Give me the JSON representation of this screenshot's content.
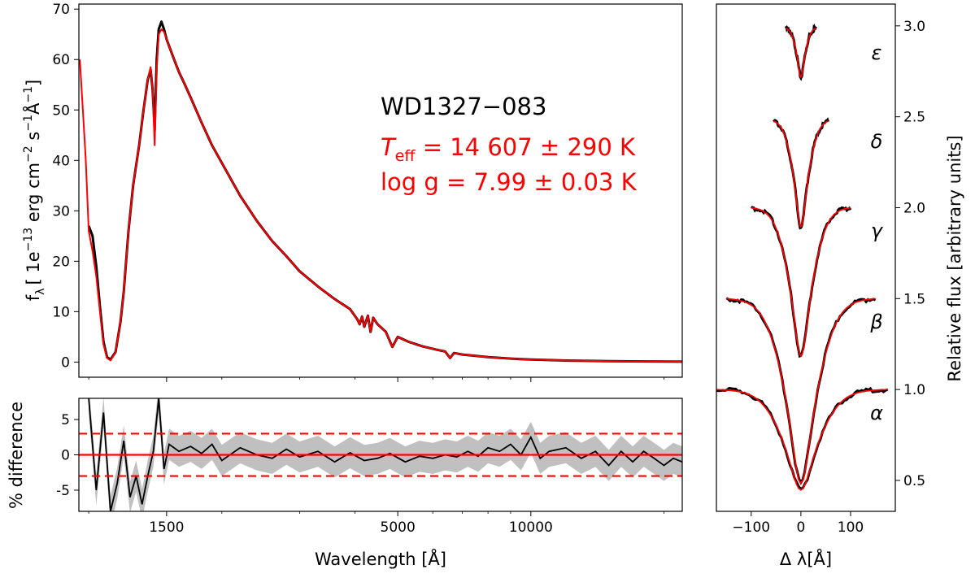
{
  "chart_data": [
    {
      "type": "line",
      "panel": "main-sed",
      "xlabel": "",
      "ylabel": "f_λ [ 1e−13 erg cm−2 s−1Å−1]",
      "ylabel_parts": {
        "f": "f",
        "lambda_sub": "λ",
        "bracket_open": "[ 1e",
        "exp1": "−13",
        "mid1": " erg cm",
        "exp2": "−2",
        "mid2": " s",
        "exp3": "−1",
        "mid3": "Å",
        "exp4": "−1",
        "bracket_close": "]"
      },
      "x_scale": "log",
      "x_range": [
        950,
        22000
      ],
      "x_ticks": [
        1500,
        5000,
        10000
      ],
      "ylim": [
        -3,
        71
      ],
      "y_ticks": [
        0,
        10,
        20,
        30,
        40,
        50,
        60,
        70
      ],
      "annotation": {
        "star": "WD1327−083",
        "teff": {
          "sym": "T",
          "sub": "eff",
          "text": " = 14 607 ± 290 K"
        },
        "logg": {
          "text": "log g = 7.99 ± 0.03 K"
        }
      },
      "series": [
        {
          "color": "#000000",
          "x": [
            1000,
            1020,
            1040,
            1060,
            1080,
            1100,
            1120,
            1150,
            1180,
            1200,
            1215,
            1230,
            1260,
            1300,
            1330,
            1360,
            1380,
            1395,
            1410,
            1425,
            1440,
            1460,
            1480,
            1500,
            1530,
            1560,
            1600,
            1650,
            1700,
            1800,
            1900,
            2000,
            2200,
            2400,
            2600,
            2800,
            3000,
            3300,
            3600,
            3900,
            4050,
            4100,
            4150,
            4200,
            4280,
            4340,
            4400,
            4500,
            4700,
            4861,
            5000,
            5300,
            5700,
            6100,
            6400,
            6563,
            6700,
            7000,
            8000,
            9000,
            10000,
            12000,
            15000,
            18000,
            22000
          ],
          "y": [
            27,
            25,
            19,
            11,
            4,
            1.0,
            0.5,
            2,
            8,
            14,
            20,
            26,
            35,
            43,
            50,
            56,
            58,
            54,
            46,
            60,
            66,
            67.5,
            66,
            64,
            62,
            60,
            57.5,
            55,
            52.5,
            47.5,
            43,
            39.5,
            33,
            28,
            24,
            21,
            18,
            15,
            12.5,
            10.5,
            8.5,
            7.5,
            9,
            7.0,
            9.2,
            6.0,
            8.8,
            7.5,
            6.0,
            3.0,
            5.0,
            4.0,
            3.1,
            2.5,
            2.1,
            0.8,
            1.8,
            1.5,
            1.0,
            0.7,
            0.5,
            0.3,
            0.2,
            0.12,
            0.08
          ]
        },
        {
          "color": "#ff0000",
          "x": [
            955,
            970,
            985,
            1000,
            1020,
            1040,
            1060,
            1080,
            1100,
            1120,
            1150,
            1180,
            1200,
            1215,
            1230,
            1260,
            1300,
            1330,
            1360,
            1380,
            1395,
            1410,
            1425,
            1440,
            1460,
            1480,
            1500,
            1530,
            1560,
            1600,
            1650,
            1700,
            1800,
            1900,
            2000,
            2200,
            2400,
            2600,
            2800,
            3000,
            3300,
            3600,
            3900,
            4050,
            4100,
            4150,
            4200,
            4280,
            4340,
            4400,
            4500,
            4700,
            4861,
            5000,
            5300,
            5700,
            6100,
            6400,
            6563,
            6700,
            7000,
            8000,
            9000,
            10000,
            12000,
            15000,
            18000,
            22000
          ],
          "y": [
            60,
            50,
            40,
            26,
            22,
            17,
            10,
            3.5,
            0.8,
            0.3,
            2,
            8,
            14,
            20,
            26,
            35,
            43,
            50,
            56,
            58.5,
            54,
            43,
            58,
            65,
            66,
            65.5,
            64,
            62,
            60,
            57.5,
            55,
            52.5,
            47.5,
            43,
            39.5,
            33,
            28,
            24,
            21,
            18,
            15,
            12.5,
            10.5,
            8.5,
            7.5,
            9,
            7.0,
            9.2,
            6.0,
            8.8,
            7.5,
            6.0,
            3.0,
            5.0,
            4.0,
            3.1,
            2.5,
            2.1,
            0.8,
            1.8,
            1.5,
            1.0,
            0.7,
            0.5,
            0.3,
            0.2,
            0.12,
            0.08
          ]
        }
      ]
    },
    {
      "type": "line",
      "panel": "residuals",
      "xlabel": "Wavelength [Å]",
      "ylabel": "% difference",
      "x_scale": "log",
      "x_range": [
        950,
        22000
      ],
      "x_ticks": [
        1500,
        5000,
        10000
      ],
      "ylim": [
        -8,
        8
      ],
      "y_ticks": [
        -5,
        0,
        5
      ],
      "reference_lines": [
        {
          "y": 0,
          "style": "solid",
          "color": "#ff0000"
        },
        {
          "y": 3,
          "style": "dashed",
          "color": "#ff0000"
        },
        {
          "y": -3,
          "style": "dashed",
          "color": "#ff0000"
        }
      ],
      "series": [
        {
          "color": "#000000",
          "x": [
            1000,
            1040,
            1080,
            1120,
            1160,
            1200,
            1240,
            1280,
            1320,
            1360,
            1400,
            1440,
            1480,
            1520,
            1600,
            1700,
            1800,
            1900,
            2000,
            2200,
            2400,
            2600,
            2800,
            3000,
            3300,
            3600,
            3900,
            4200,
            4500,
            4800,
            5200,
            5600,
            6000,
            6400,
            6800,
            7200,
            7600,
            8000,
            8500,
            9000,
            9500,
            10000,
            10500,
            11000,
            12000,
            13000,
            14000,
            15000,
            16000,
            17000,
            18000,
            19000,
            20000,
            21000,
            22000
          ],
          "y": [
            8,
            -5,
            6,
            -8,
            -4,
            2,
            -6,
            -3,
            -7,
            -3,
            0.5,
            8,
            -2,
            1.5,
            0.5,
            1.2,
            0.2,
            1.5,
            -0.8,
            1.0,
            0.0,
            -0.5,
            0.8,
            -0.3,
            0.5,
            -1.0,
            0.3,
            -0.8,
            -0.5,
            0.2,
            -1.0,
            -0.2,
            -0.5,
            0.0,
            -0.3,
            0.5,
            -0.2,
            1.0,
            0.5,
            1.5,
            0.0,
            2.5,
            -0.5,
            0.5,
            1.0,
            -0.5,
            0.5,
            -1.5,
            0.5,
            -1.0,
            0.5,
            -0.5,
            -1.5,
            -0.5,
            -1.0
          ]
        }
      ]
    },
    {
      "type": "line",
      "panel": "balmer-profiles",
      "xlabel": "Δ λ[Å]",
      "ylabel": "Relative flux [arbitrary units]",
      "xlim": [
        -170,
        190
      ],
      "x_ticks": [
        -100,
        0,
        100
      ],
      "ylim": [
        0.33,
        3.12
      ],
      "y_ticks": [
        0.5,
        1.0,
        1.5,
        2.0,
        2.5,
        3.0
      ],
      "line_labels": [
        "ε",
        "δ",
        "γ",
        "β",
        "α"
      ],
      "profiles": [
        {
          "name": "ε",
          "offset": 2.0,
          "halfwidth": 30,
          "depth": 0.28,
          "width": 7
        },
        {
          "name": "δ",
          "offset": 1.5,
          "halfwidth": 55,
          "depth": 0.6,
          "width": 12
        },
        {
          "name": "γ",
          "offset": 1.0,
          "halfwidth": 100,
          "depth": 0.83,
          "width": 18
        },
        {
          "name": "β",
          "offset": 0.5,
          "halfwidth": 150,
          "depth": 1.03,
          "width": 25
        },
        {
          "name": "α",
          "offset": 0.0,
          "halfwidth": 175,
          "depth": 0.56,
          "width": 28
        }
      ],
      "baselines": [
        2.99,
        2.48,
        2.0,
        1.5,
        1.0
      ],
      "series_colors": {
        "observed": "#000000",
        "model": "#ff0000"
      }
    }
  ]
}
